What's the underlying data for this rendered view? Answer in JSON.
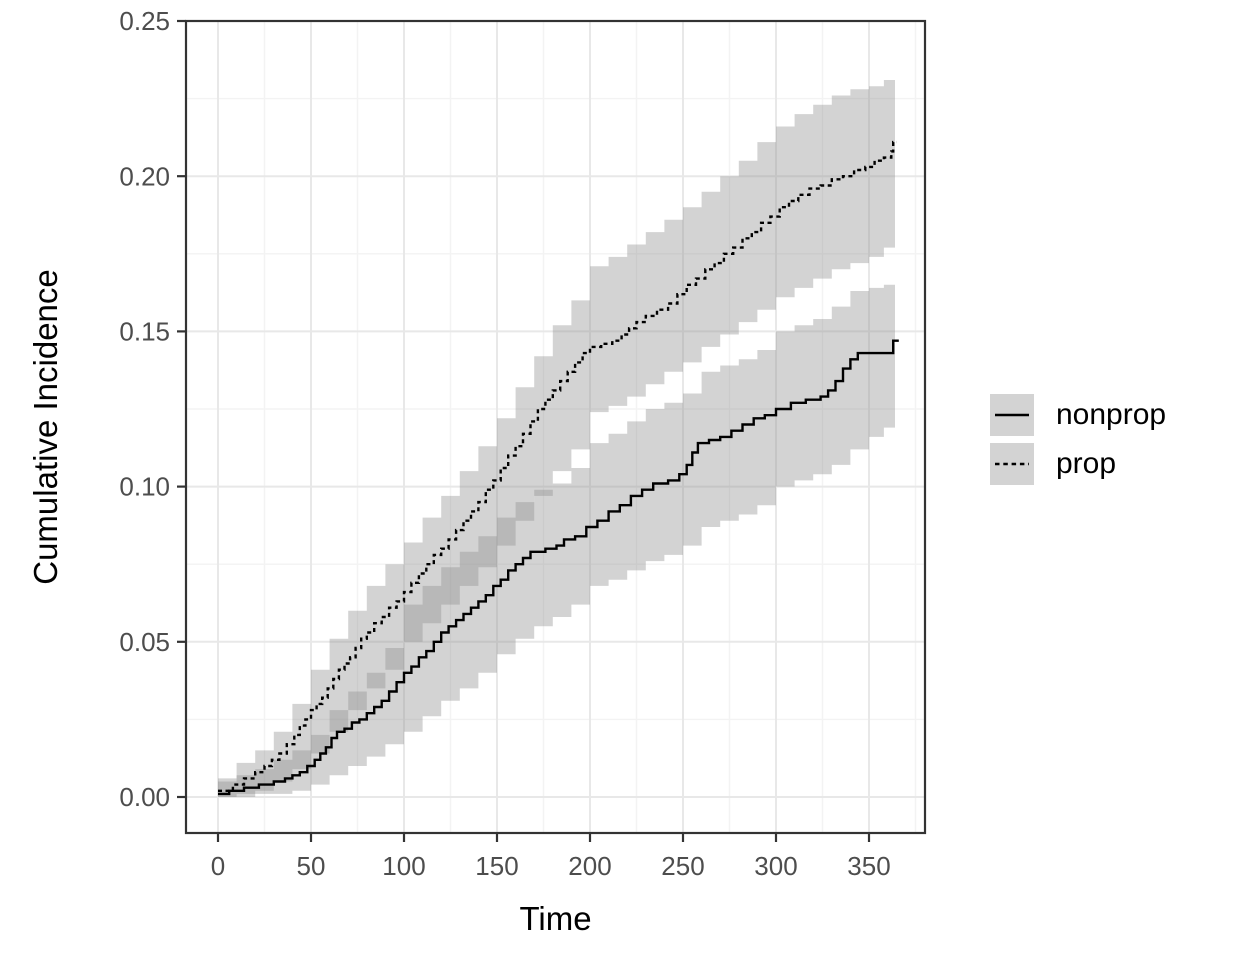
{
  "figure": {
    "background_color": "#ffffff",
    "panel_border_color": "#333333",
    "grid_major_color": "#e8e8e8",
    "grid_minor_color": "#f3f3f3",
    "axis_text_color": "#4d4d4d",
    "axis_title_color": "#000000",
    "tick_color": "#333333"
  },
  "chart_data": {
    "type": "line",
    "subtype": "cumulative-incidence-step-curves-with-confidence-bands",
    "title": "",
    "xlabel": "Time",
    "ylabel": "Cumulative Incidence",
    "xlim": [
      -18,
      381
    ],
    "ylim": [
      -0.0116,
      0.25
    ],
    "grid": true,
    "x_ticks": {
      "values": [
        0,
        50,
        100,
        150,
        200,
        250,
        300,
        350
      ],
      "labels": [
        "0",
        "50",
        "100",
        "150",
        "200",
        "250",
        "300",
        "350"
      ],
      "minor": [
        25,
        75,
        125,
        175,
        225,
        275,
        325,
        375
      ]
    },
    "y_ticks": {
      "values": [
        0.0,
        0.05,
        0.1,
        0.15,
        0.2,
        0.25
      ],
      "labels": [
        "0.00",
        "0.05",
        "0.10",
        "0.15",
        "0.20",
        "0.25"
      ],
      "minor": [
        0.025,
        0.075,
        0.125,
        0.175,
        0.225
      ]
    },
    "band_fill": "#8c8c8c",
    "band_opacity": 0.38,
    "line_color": "#000000",
    "legend": {
      "position": "right",
      "entries": [
        {
          "label": "nonprop",
          "linestyle": "solid",
          "key_fill": "#d3d3d3"
        },
        {
          "label": "prop",
          "linestyle": "dotted",
          "key_fill": "#d3d3d3"
        }
      ]
    },
    "series": [
      {
        "name": "nonprop",
        "linestyle": "solid",
        "points": [
          [
            0,
            0.001
          ],
          [
            6,
            0.002
          ],
          [
            14,
            0.003
          ],
          [
            22,
            0.004
          ],
          [
            30,
            0.005
          ],
          [
            36,
            0.006
          ],
          [
            40,
            0.007
          ],
          [
            44,
            0.008
          ],
          [
            48,
            0.01
          ],
          [
            52,
            0.012
          ],
          [
            55,
            0.014
          ],
          [
            58,
            0.016
          ],
          [
            61,
            0.019
          ],
          [
            64,
            0.021
          ],
          [
            68,
            0.022
          ],
          [
            72,
            0.024
          ],
          [
            76,
            0.025
          ],
          [
            80,
            0.027
          ],
          [
            84,
            0.029
          ],
          [
            88,
            0.031
          ],
          [
            92,
            0.034
          ],
          [
            96,
            0.037
          ],
          [
            100,
            0.04
          ],
          [
            104,
            0.042
          ],
          [
            108,
            0.045
          ],
          [
            112,
            0.047
          ],
          [
            116,
            0.05
          ],
          [
            120,
            0.053
          ],
          [
            124,
            0.055
          ],
          [
            128,
            0.057
          ],
          [
            132,
            0.059
          ],
          [
            136,
            0.061
          ],
          [
            140,
            0.063
          ],
          [
            144,
            0.065
          ],
          [
            148,
            0.068
          ],
          [
            152,
            0.07
          ],
          [
            156,
            0.073
          ],
          [
            160,
            0.075
          ],
          [
            164,
            0.077
          ],
          [
            168,
            0.079
          ],
          [
            176,
            0.08
          ],
          [
            182,
            0.081
          ],
          [
            186,
            0.083
          ],
          [
            192,
            0.084
          ],
          [
            198,
            0.087
          ],
          [
            204,
            0.089
          ],
          [
            210,
            0.092
          ],
          [
            216,
            0.094
          ],
          [
            222,
            0.097
          ],
          [
            228,
            0.099
          ],
          [
            234,
            0.101
          ],
          [
            242,
            0.102
          ],
          [
            248,
            0.104
          ],
          [
            252,
            0.107
          ],
          [
            255,
            0.111
          ],
          [
            258,
            0.114
          ],
          [
            264,
            0.115
          ],
          [
            270,
            0.116
          ],
          [
            276,
            0.118
          ],
          [
            282,
            0.12
          ],
          [
            288,
            0.122
          ],
          [
            294,
            0.123
          ],
          [
            300,
            0.125
          ],
          [
            308,
            0.127
          ],
          [
            316,
            0.128
          ],
          [
            324,
            0.129
          ],
          [
            328,
            0.131
          ],
          [
            332,
            0.134
          ],
          [
            336,
            0.138
          ],
          [
            340,
            0.141
          ],
          [
            344,
            0.143
          ],
          [
            361,
            0.143
          ],
          [
            363,
            0.147
          ],
          [
            366,
            0.147
          ]
        ],
        "band": [
          [
            0,
            0.0,
            0.005
          ],
          [
            10,
            0.0,
            0.007
          ],
          [
            20,
            0.001,
            0.009
          ],
          [
            30,
            0.001,
            0.012
          ],
          [
            40,
            0.002,
            0.015
          ],
          [
            50,
            0.004,
            0.02
          ],
          [
            60,
            0.007,
            0.028
          ],
          [
            70,
            0.01,
            0.034
          ],
          [
            80,
            0.013,
            0.04
          ],
          [
            90,
            0.017,
            0.048
          ],
          [
            100,
            0.021,
            0.062
          ],
          [
            110,
            0.026,
            0.068
          ],
          [
            120,
            0.031,
            0.074
          ],
          [
            130,
            0.035,
            0.079
          ],
          [
            140,
            0.04,
            0.084
          ],
          [
            150,
            0.046,
            0.09
          ],
          [
            160,
            0.051,
            0.095
          ],
          [
            170,
            0.055,
            0.099
          ],
          [
            180,
            0.058,
            0.101
          ],
          [
            190,
            0.062,
            0.106
          ],
          [
            200,
            0.068,
            0.114
          ],
          [
            210,
            0.07,
            0.117
          ],
          [
            220,
            0.073,
            0.121
          ],
          [
            230,
            0.076,
            0.125
          ],
          [
            240,
            0.078,
            0.127
          ],
          [
            250,
            0.081,
            0.13
          ],
          [
            260,
            0.087,
            0.137
          ],
          [
            270,
            0.089,
            0.139
          ],
          [
            280,
            0.091,
            0.141
          ],
          [
            290,
            0.094,
            0.144
          ],
          [
            300,
            0.1,
            0.15
          ],
          [
            310,
            0.102,
            0.152
          ],
          [
            320,
            0.104,
            0.154
          ],
          [
            330,
            0.107,
            0.158
          ],
          [
            340,
            0.112,
            0.163
          ],
          [
            350,
            0.116,
            0.164
          ],
          [
            358,
            0.119,
            0.165
          ],
          [
            364,
            0.122,
            0.166
          ]
        ]
      },
      {
        "name": "prop",
        "linestyle": "dotted",
        "points": [
          [
            0,
            0.002
          ],
          [
            8,
            0.004
          ],
          [
            14,
            0.006
          ],
          [
            20,
            0.008
          ],
          [
            25,
            0.01
          ],
          [
            29,
            0.012
          ],
          [
            33,
            0.014
          ],
          [
            37,
            0.017
          ],
          [
            41,
            0.02
          ],
          [
            44,
            0.023
          ],
          [
            47,
            0.025
          ],
          [
            50,
            0.028
          ],
          [
            53,
            0.03
          ],
          [
            56,
            0.032
          ],
          [
            59,
            0.035
          ],
          [
            62,
            0.038
          ],
          [
            65,
            0.041
          ],
          [
            68,
            0.043
          ],
          [
            71,
            0.045
          ],
          [
            74,
            0.048
          ],
          [
            77,
            0.051
          ],
          [
            80,
            0.053
          ],
          [
            84,
            0.056
          ],
          [
            88,
            0.058
          ],
          [
            92,
            0.061
          ],
          [
            96,
            0.063
          ],
          [
            100,
            0.066
          ],
          [
            104,
            0.069
          ],
          [
            108,
            0.072
          ],
          [
            112,
            0.075
          ],
          [
            116,
            0.078
          ],
          [
            120,
            0.08
          ],
          [
            124,
            0.083
          ],
          [
            128,
            0.086
          ],
          [
            132,
            0.089
          ],
          [
            136,
            0.092
          ],
          [
            140,
            0.095
          ],
          [
            144,
            0.099
          ],
          [
            148,
            0.102
          ],
          [
            152,
            0.106
          ],
          [
            156,
            0.11
          ],
          [
            160,
            0.113
          ],
          [
            164,
            0.117
          ],
          [
            168,
            0.121
          ],
          [
            172,
            0.125
          ],
          [
            176,
            0.128
          ],
          [
            180,
            0.131
          ],
          [
            184,
            0.134
          ],
          [
            188,
            0.137
          ],
          [
            192,
            0.14
          ],
          [
            196,
            0.143
          ],
          [
            200,
            0.145
          ],
          [
            206,
            0.146
          ],
          [
            212,
            0.147
          ],
          [
            217,
            0.149
          ],
          [
            221,
            0.151
          ],
          [
            225,
            0.153
          ],
          [
            230,
            0.155
          ],
          [
            236,
            0.157
          ],
          [
            242,
            0.159
          ],
          [
            247,
            0.162
          ],
          [
            252,
            0.165
          ],
          [
            257,
            0.167
          ],
          [
            262,
            0.17
          ],
          [
            267,
            0.172
          ],
          [
            272,
            0.175
          ],
          [
            277,
            0.177
          ],
          [
            282,
            0.18
          ],
          [
            287,
            0.182
          ],
          [
            292,
            0.185
          ],
          [
            297,
            0.187
          ],
          [
            302,
            0.19
          ],
          [
            307,
            0.192
          ],
          [
            312,
            0.194
          ],
          [
            318,
            0.196
          ],
          [
            324,
            0.197
          ],
          [
            330,
            0.199
          ],
          [
            336,
            0.2
          ],
          [
            342,
            0.202
          ],
          [
            348,
            0.203
          ],
          [
            353,
            0.205
          ],
          [
            358,
            0.206
          ],
          [
            362,
            0.208
          ],
          [
            363,
            0.211
          ],
          [
            365,
            0.211
          ]
        ],
        "band": [
          [
            0,
            0.0,
            0.006
          ],
          [
            10,
            0.001,
            0.011
          ],
          [
            20,
            0.002,
            0.015
          ],
          [
            30,
            0.005,
            0.021
          ],
          [
            40,
            0.009,
            0.03
          ],
          [
            50,
            0.014,
            0.041
          ],
          [
            60,
            0.021,
            0.051
          ],
          [
            70,
            0.028,
            0.06
          ],
          [
            80,
            0.035,
            0.068
          ],
          [
            90,
            0.041,
            0.075
          ],
          [
            100,
            0.05,
            0.082
          ],
          [
            110,
            0.056,
            0.09
          ],
          [
            120,
            0.062,
            0.097
          ],
          [
            130,
            0.068,
            0.105
          ],
          [
            140,
            0.074,
            0.113
          ],
          [
            150,
            0.081,
            0.122
          ],
          [
            160,
            0.089,
            0.132
          ],
          [
            170,
            0.097,
            0.142
          ],
          [
            180,
            0.105,
            0.152
          ],
          [
            190,
            0.112,
            0.16
          ],
          [
            200,
            0.124,
            0.171
          ],
          [
            210,
            0.126,
            0.174
          ],
          [
            220,
            0.129,
            0.178
          ],
          [
            230,
            0.133,
            0.182
          ],
          [
            240,
            0.137,
            0.186
          ],
          [
            250,
            0.14,
            0.19
          ],
          [
            260,
            0.145,
            0.195
          ],
          [
            270,
            0.149,
            0.2
          ],
          [
            280,
            0.153,
            0.205
          ],
          [
            290,
            0.157,
            0.211
          ],
          [
            300,
            0.161,
            0.216
          ],
          [
            310,
            0.164,
            0.22
          ],
          [
            320,
            0.167,
            0.223
          ],
          [
            330,
            0.17,
            0.226
          ],
          [
            340,
            0.172,
            0.228
          ],
          [
            350,
            0.174,
            0.229
          ],
          [
            358,
            0.177,
            0.231
          ],
          [
            364,
            0.18,
            0.233
          ]
        ]
      }
    ]
  }
}
